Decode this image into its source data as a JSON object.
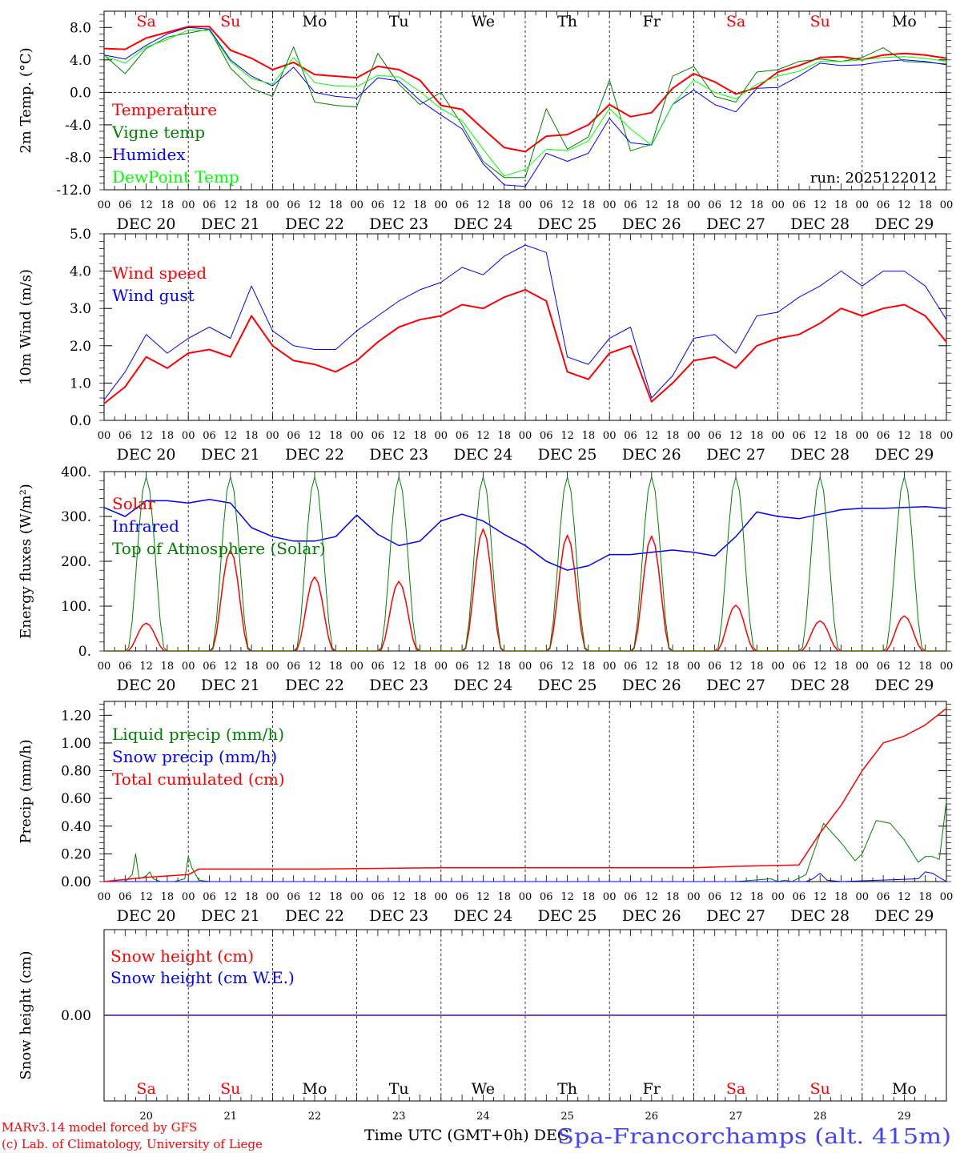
{
  "days": [
    {
      "abbr": "Sa",
      "date": "DEC 20",
      "num": "20",
      "weekend": true
    },
    {
      "abbr": "Su",
      "date": "DEC 21",
      "num": "21",
      "weekend": true
    },
    {
      "abbr": "Mo",
      "date": "DEC 22",
      "num": "22",
      "weekend": false
    },
    {
      "abbr": "Tu",
      "date": "DEC 23",
      "num": "23",
      "weekend": false
    },
    {
      "abbr": "We",
      "date": "DEC 24",
      "num": "24",
      "weekend": false
    },
    {
      "abbr": "Th",
      "date": "DEC 25",
      "num": "25",
      "weekend": false
    },
    {
      "abbr": "Fr",
      "date": "DEC 26",
      "num": "26",
      "weekend": false
    },
    {
      "abbr": "Sa",
      "date": "DEC 27",
      "num": "27",
      "weekend": true
    },
    {
      "abbr": "Su",
      "date": "DEC 28",
      "num": "28",
      "weekend": true
    },
    {
      "abbr": "Mo",
      "date": "DEC 29",
      "num": "29",
      "weekend": false
    }
  ],
  "hour_ticks": [
    "00",
    "06",
    "12",
    "18"
  ],
  "final_tick": "00",
  "colors": {
    "red": "#ff0000",
    "green": "#008000",
    "blue": "#0000ff",
    "lightgreen": "#00ff00",
    "axis": "#000000"
  },
  "footer": {
    "model": "MARv3.14 model forced by GFS",
    "credit": "(c) Lab. of Climatology, University of Liege",
    "xlabel": "Time UTC (GMT+0h) DEC",
    "station": "Spa-Francorchamps (alt. 415m)"
  },
  "chart_data": [
    {
      "id": "temp",
      "type": "line",
      "ylabel": "2m Temp. (°C)",
      "ylim": [
        -12,
        10
      ],
      "yticks": [
        8,
        4,
        0,
        -4,
        -8,
        -12
      ],
      "ytick_labels": [
        "8.0",
        "4.0",
        "0.0",
        "-4.0",
        "-8.0",
        "-12.0"
      ],
      "show_day_names": true,
      "annotation": "run: 2025122012",
      "zero_line": true,
      "x_hours": [
        0,
        6,
        12,
        18,
        24,
        30,
        36,
        42,
        48,
        54,
        60,
        66,
        72,
        78,
        84,
        90,
        96,
        102,
        108,
        114,
        120,
        126,
        132,
        138,
        144,
        150,
        156,
        162,
        168,
        174,
        180,
        186,
        192,
        198,
        204,
        210,
        216,
        222,
        228,
        234,
        240
      ],
      "series": [
        {
          "name": "Temperature",
          "color": "red",
          "width": 2,
          "values": [
            5.4,
            5.3,
            6.7,
            7.4,
            8.1,
            8.1,
            5.2,
            4.2,
            2.8,
            3.7,
            2.2,
            2.0,
            1.8,
            3.2,
            2.8,
            1.5,
            -1.6,
            -2.1,
            -4.5,
            -6.8,
            -7.3,
            -5.4,
            -5.2,
            -4.0,
            -1.5,
            -3.0,
            -2.5,
            0.5,
            2.3,
            1.3,
            -0.2,
            0.6,
            2.5,
            3.3,
            4.3,
            4.4,
            4.0,
            4.6,
            4.8,
            4.6,
            4.2
          ]
        },
        {
          "name": "Vigne temp",
          "color": "green",
          "width": 1,
          "values": [
            4.6,
            2.3,
            5.4,
            6.8,
            7.3,
            7.8,
            3.0,
            0.5,
            -0.5,
            5.6,
            -1.2,
            -1.6,
            -1.8,
            4.8,
            1.0,
            -1.5,
            0.0,
            -4.0,
            -8.5,
            -10.5,
            -10.5,
            -2.0,
            -7.0,
            -5.5,
            1.5,
            -7.2,
            -6.4,
            2.0,
            3.2,
            -0.5,
            -1.2,
            2.5,
            2.8,
            3.8,
            4.1,
            3.8,
            4.3,
            5.5,
            3.8,
            3.7,
            3.5
          ]
        },
        {
          "name": "Humidex",
          "color": "blue",
          "width": 1,
          "values": [
            4.6,
            4.1,
            5.8,
            7.2,
            8.0,
            7.8,
            4.0,
            2.0,
            0.8,
            3.1,
            0.0,
            -0.5,
            -0.7,
            1.8,
            1.4,
            -1.0,
            -2.8,
            -4.5,
            -8.8,
            -11.4,
            -11.6,
            -7.5,
            -8.5,
            -7.5,
            -3.2,
            -6.2,
            -6.5,
            -1.5,
            0.3,
            -1.5,
            -2.4,
            0.5,
            0.6,
            2.0,
            3.6,
            3.3,
            3.4,
            3.8,
            4.0,
            3.8,
            3.4
          ]
        },
        {
          "name": "DewPoint Temp",
          "color": "lightgreen",
          "width": 1,
          "values": [
            4.5,
            3.6,
            5.6,
            6.5,
            7.7,
            7.6,
            3.8,
            1.7,
            1.0,
            4.3,
            1.2,
            0.8,
            0.7,
            2.1,
            1.9,
            0.1,
            -2.0,
            -3.5,
            -7.0,
            -10.3,
            -9.5,
            -7.0,
            -7.2,
            -6.0,
            -2.0,
            -4.5,
            -6.5,
            -1.5,
            1.5,
            0.0,
            -0.8,
            1.0,
            2.0,
            2.6,
            3.8,
            3.8,
            4.0,
            4.3,
            4.4,
            4.2,
            3.8
          ]
        }
      ]
    },
    {
      "id": "wind",
      "type": "line",
      "ylabel": "10m Wind (m/s)",
      "ylim": [
        0,
        5
      ],
      "yticks": [
        5,
        4,
        3,
        2,
        1,
        0
      ],
      "ytick_labels": [
        "5.0",
        "4.0",
        "3.0",
        "2.0",
        "1.0",
        "0.0"
      ],
      "show_day_names": false,
      "annotation": "",
      "x_hours": [
        0,
        6,
        12,
        18,
        24,
        30,
        36,
        42,
        48,
        54,
        60,
        66,
        72,
        78,
        84,
        90,
        96,
        102,
        108,
        114,
        120,
        126,
        132,
        138,
        144,
        150,
        156,
        162,
        168,
        174,
        180,
        186,
        192,
        198,
        204,
        210,
        216,
        222,
        228,
        234,
        240
      ],
      "series": [
        {
          "name": "Wind speed",
          "color": "red",
          "width": 2,
          "values": [
            0.45,
            0.9,
            1.7,
            1.4,
            1.8,
            1.9,
            1.7,
            2.8,
            2.0,
            1.6,
            1.5,
            1.3,
            1.6,
            2.1,
            2.5,
            2.7,
            2.8,
            3.1,
            3.0,
            3.3,
            3.5,
            3.2,
            1.3,
            1.1,
            1.8,
            2.0,
            0.5,
            1.0,
            1.6,
            1.7,
            1.4,
            2.0,
            2.2,
            2.3,
            2.6,
            3.0,
            2.8,
            3.0,
            3.1,
            2.8,
            2.1
          ]
        },
        {
          "name": "Wind gust",
          "color": "blue",
          "width": 1,
          "values": [
            0.55,
            1.3,
            2.3,
            1.8,
            2.2,
            2.5,
            2.2,
            3.6,
            2.4,
            2.0,
            1.9,
            1.9,
            2.4,
            2.8,
            3.2,
            3.5,
            3.7,
            4.1,
            3.9,
            4.4,
            4.7,
            4.5,
            1.7,
            1.5,
            2.2,
            2.5,
            0.6,
            1.2,
            2.2,
            2.3,
            1.8,
            2.8,
            2.9,
            3.3,
            3.6,
            4.0,
            3.6,
            4.0,
            4.0,
            3.6,
            2.7
          ]
        }
      ]
    },
    {
      "id": "flux",
      "type": "line",
      "ylabel": "Energy fluxes (W/m²)",
      "ylim": [
        0,
        400
      ],
      "yticks": [
        400,
        300,
        200,
        100,
        0
      ],
      "ytick_labels": [
        "400.",
        "300.",
        "200.",
        "100.",
        "0."
      ],
      "show_day_names": false,
      "annotation": "",
      "x_hours": [
        0,
        6,
        12,
        18,
        24,
        30,
        36,
        42,
        48,
        54,
        60,
        66,
        72,
        78,
        84,
        90,
        96,
        102,
        108,
        114,
        120,
        126,
        132,
        138,
        144,
        150,
        156,
        162,
        168,
        174,
        180,
        186,
        192,
        198,
        204,
        210,
        216,
        222,
        228,
        234,
        240
      ],
      "series": [
        {
          "name": "Solar",
          "color": "red",
          "width": 1.5,
          "peaks": [
            {
              "h": 12,
              "v": 62
            },
            {
              "h": 36,
              "v": 225
            },
            {
              "h": 60,
              "v": 165
            },
            {
              "h": 84,
              "v": 155
            },
            {
              "h": 108,
              "v": 272
            },
            {
              "h": 132,
              "v": 258
            },
            {
              "h": 156,
              "v": 256
            },
            {
              "h": 180,
              "v": 102
            },
            {
              "h": 204,
              "v": 67
            },
            {
              "h": 228,
              "v": 78
            }
          ]
        },
        {
          "name": "Infrared",
          "color": "blue",
          "width": 1.5,
          "values": [
            320,
            300,
            335,
            335,
            330,
            338,
            330,
            275,
            255,
            245,
            245,
            255,
            303,
            260,
            235,
            245,
            290,
            305,
            290,
            260,
            235,
            200,
            180,
            190,
            215,
            215,
            220,
            225,
            220,
            212,
            255,
            310,
            300,
            295,
            305,
            315,
            318,
            318,
            320,
            322,
            318
          ]
        },
        {
          "name": "Top of Atmosphere (Solar)",
          "color": "green",
          "width": 1,
          "peaks": [
            {
              "h": 12,
              "v": 388
            },
            {
              "h": 36,
              "v": 388
            },
            {
              "h": 60,
              "v": 388
            },
            {
              "h": 84,
              "v": 388
            },
            {
              "h": 108,
              "v": 388
            },
            {
              "h": 132,
              "v": 388
            },
            {
              "h": 156,
              "v": 388
            },
            {
              "h": 180,
              "v": 388
            },
            {
              "h": 204,
              "v": 388
            },
            {
              "h": 228,
              "v": 388
            }
          ]
        }
      ]
    },
    {
      "id": "precip",
      "type": "line",
      "ylabel": "Precip (mm/h)",
      "ylim": [
        0,
        1.3
      ],
      "yticks": [
        1.2,
        1.0,
        0.8,
        0.6,
        0.4,
        0.2,
        0.0
      ],
      "ytick_labels": [
        "1.20",
        "1.00",
        "0.80",
        "0.60",
        "0.40",
        "0.20",
        "0.00"
      ],
      "show_day_names": false,
      "annotation": "",
      "series": [
        {
          "name": "Liquid precip (mm/h)",
          "color": "green",
          "width": 1,
          "x_hours": [
            0,
            6,
            8,
            9,
            10,
            12,
            13,
            14,
            16,
            20,
            23,
            24,
            25,
            27,
            30,
            60,
            120,
            180,
            190,
            192,
            194,
            196,
            200,
            205,
            210,
            214,
            216,
            220,
            224,
            228,
            232,
            234,
            236,
            238,
            240
          ],
          "values": [
            0,
            0,
            0.05,
            0.2,
            0.02,
            0.04,
            0.07,
            0.02,
            0,
            0,
            0.02,
            0.18,
            0.1,
            0.01,
            0,
            0,
            0,
            0,
            0.02,
            0,
            0.01,
            0,
            0.05,
            0.42,
            0.28,
            0.15,
            0.2,
            0.44,
            0.42,
            0.3,
            0.14,
            0.18,
            0.18,
            0.16,
            0.58
          ]
        },
        {
          "name": "Snow precip (mm/h)",
          "color": "blue",
          "width": 1,
          "x_hours": [
            0,
            100,
            200,
            202,
            204,
            206,
            210,
            232,
            234,
            236,
            238,
            240
          ],
          "values": [
            0,
            0,
            0,
            0.02,
            0.06,
            0.01,
            0,
            0.02,
            0.07,
            0.06,
            0.03,
            0
          ]
        },
        {
          "name": "Total cumulated (cm)",
          "color": "red",
          "width": 1.5,
          "x_hours": [
            0,
            12,
            24,
            27,
            30,
            60,
            96,
            120,
            168,
            180,
            198,
            204,
            210,
            216,
            222,
            228,
            234,
            240
          ],
          "values": [
            0.0,
            0.03,
            0.05,
            0.09,
            0.09,
            0.09,
            0.1,
            0.1,
            0.1,
            0.11,
            0.12,
            0.35,
            0.55,
            0.8,
            1.0,
            1.05,
            1.13,
            1.25
          ]
        }
      ]
    },
    {
      "id": "snow",
      "type": "line",
      "ylabel": "Snow height (cm)",
      "ylim": [
        -1,
        1
      ],
      "yticks": [
        0
      ],
      "ytick_labels": [
        "0.00"
      ],
      "show_day_names": true,
      "annotation": "",
      "series": [
        {
          "name": "Snow height (cm)",
          "color": "red",
          "width": 1.5,
          "x_hours": [
            0,
            240
          ],
          "values": [
            0,
            0
          ]
        },
        {
          "name": "Snow height (cm W.E.)",
          "color": "blue",
          "width": 1,
          "x_hours": [
            0,
            240
          ],
          "values": [
            0,
            0
          ]
        }
      ]
    }
  ]
}
